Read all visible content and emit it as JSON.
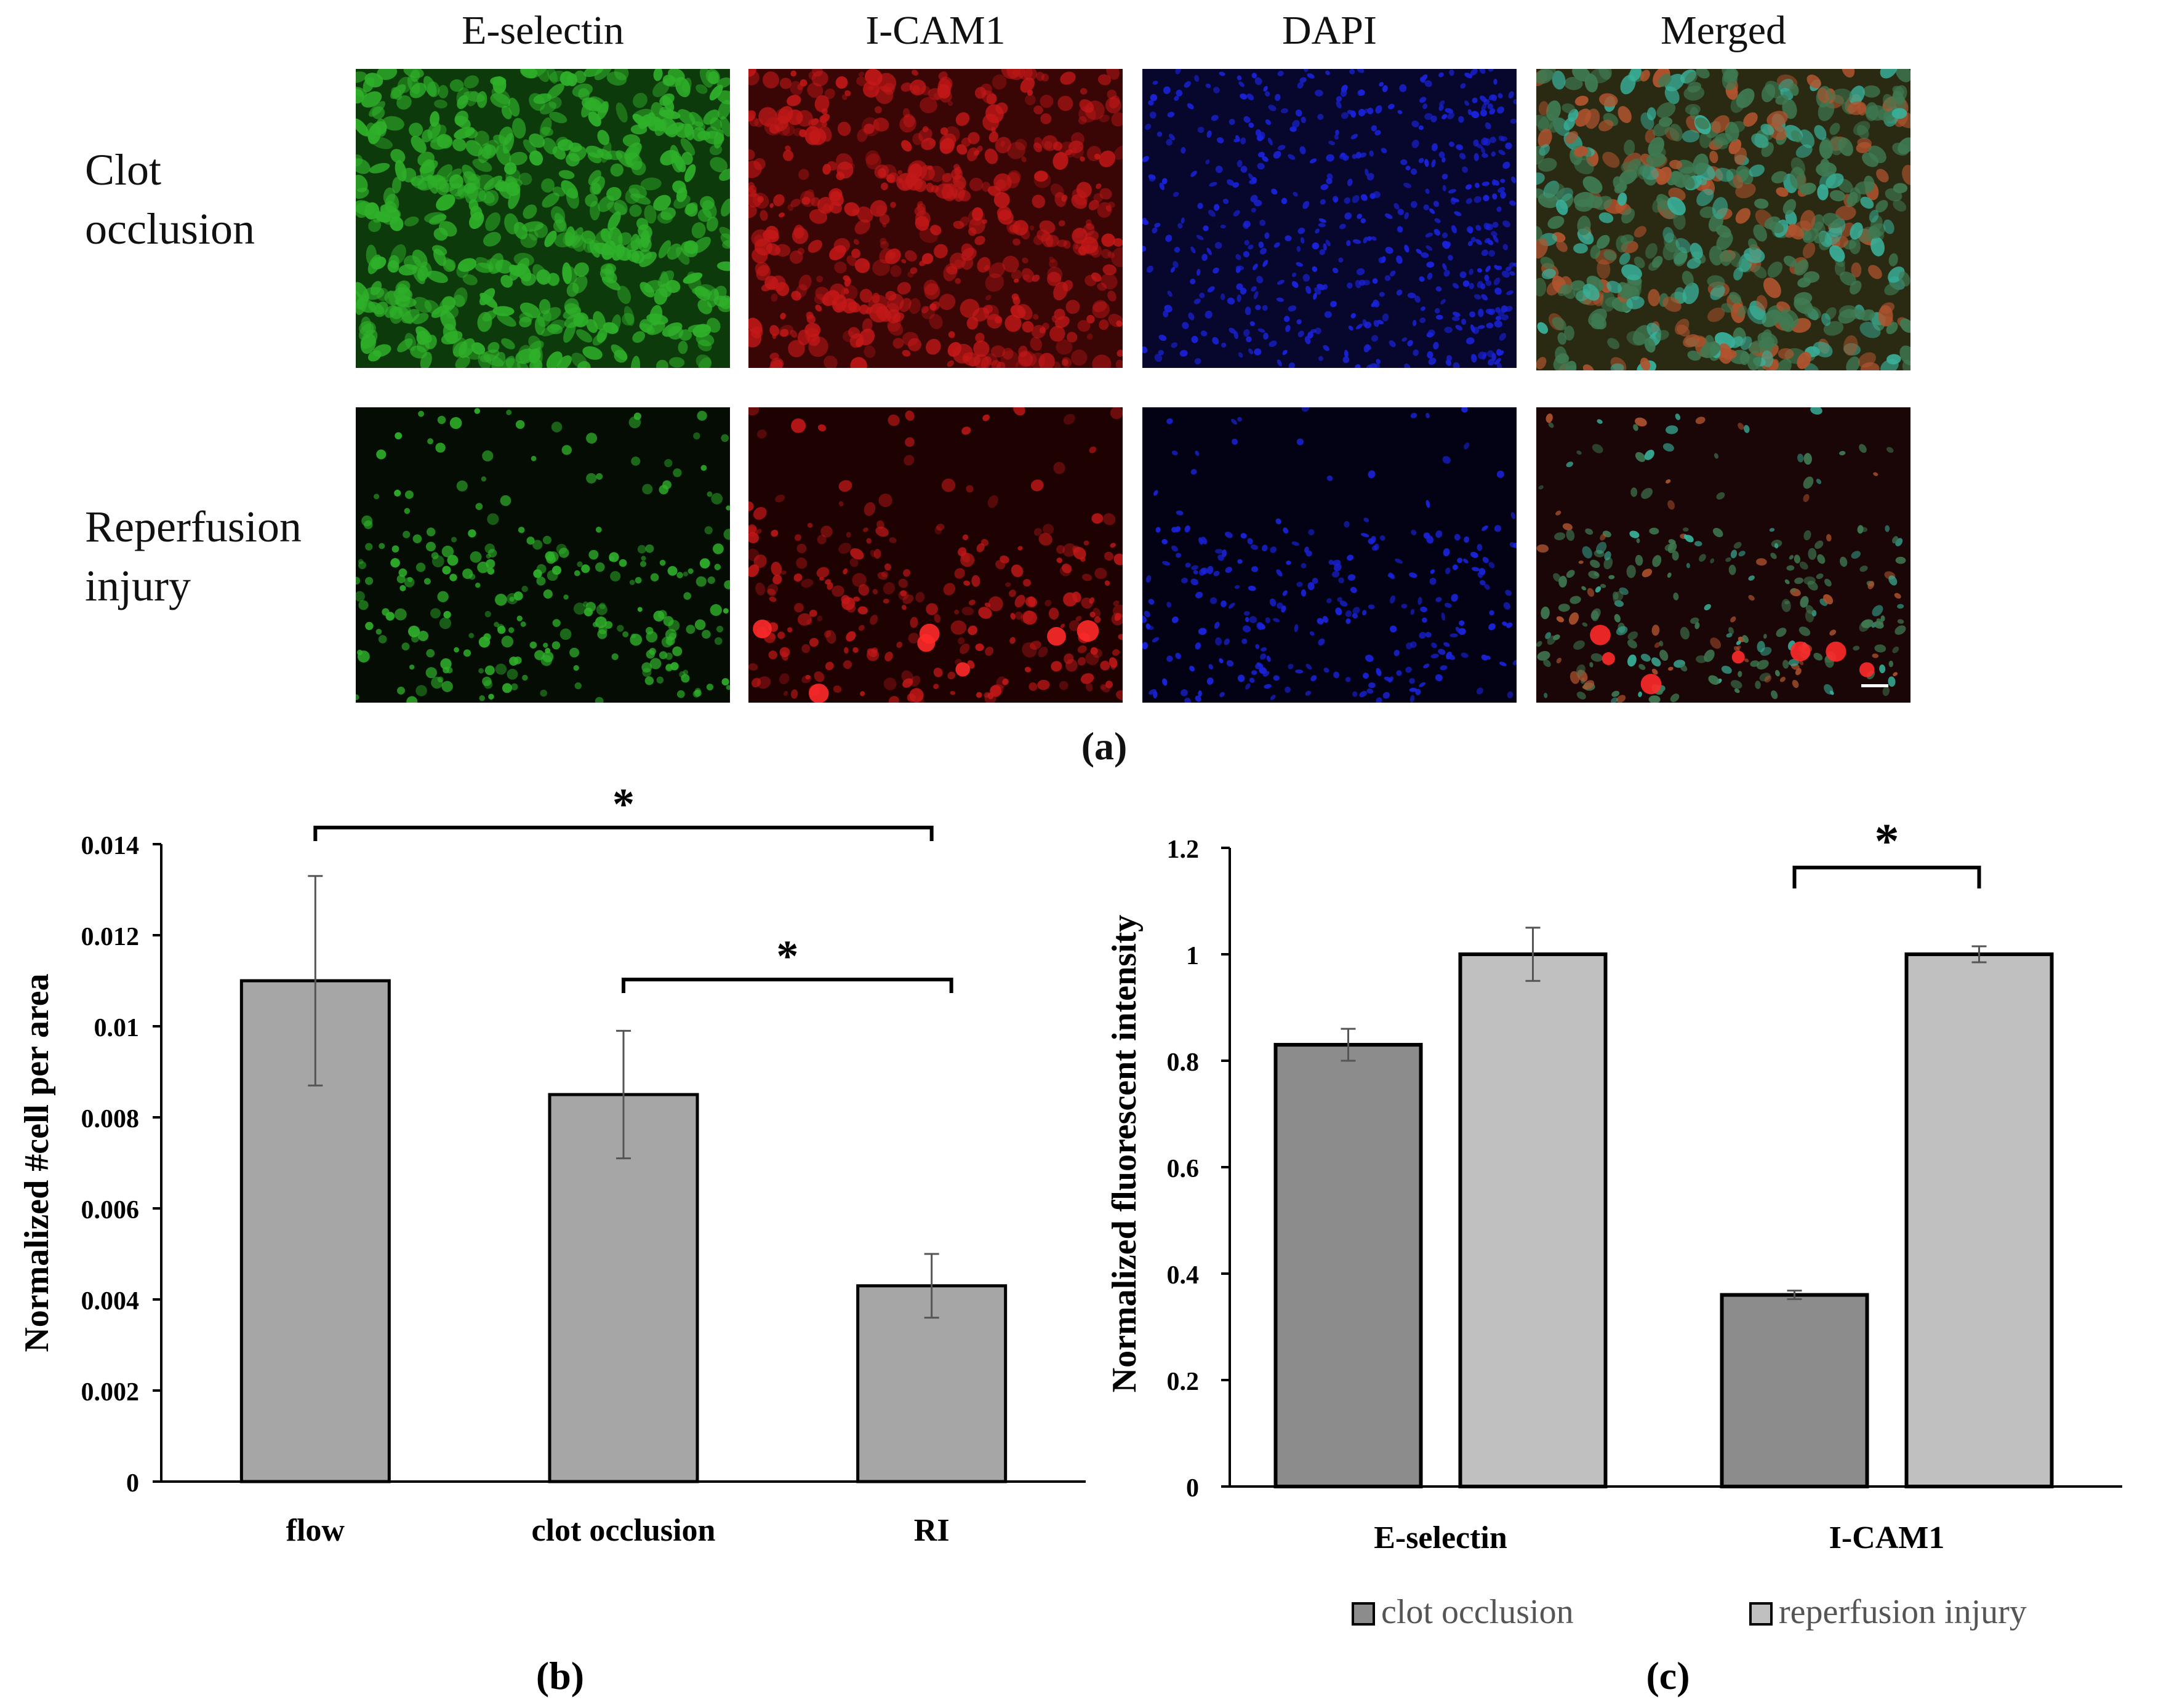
{
  "figure_a": {
    "columns": [
      "E-selectin",
      "I-CAM1",
      "DAPI",
      "Merged"
    ],
    "rows": [
      {
        "line1": "Clot",
        "line2": "occlusion"
      },
      {
        "line1": "Reperfusion",
        "line2": "injury"
      }
    ],
    "channel_colors": {
      "green": "#2fb02a",
      "red": "#c41818",
      "blue": "#1a22d8"
    },
    "caption": "(a)"
  },
  "chart_data": [
    {
      "type": "bar",
      "categories": [
        "flow",
        "clot occlusion",
        "RI"
      ],
      "values": [
        0.011,
        0.0085,
        0.0043
      ],
      "errors": [
        0.0023,
        0.0014,
        0.0007
      ],
      "ylabel": "Normalized #cell per area",
      "ylim": [
        0,
        0.014
      ],
      "yticks": [
        "0",
        "0.002",
        "0.004",
        "0.006",
        "0.008",
        "0.01",
        "0.012",
        "0.014"
      ],
      "bar_color": "#a6a6a6",
      "significance": [
        {
          "from": "flow",
          "to": "RI",
          "label": "*"
        },
        {
          "from": "clot occlusion",
          "to": "RI",
          "label": "*"
        }
      ],
      "caption": "(b)"
    },
    {
      "type": "bar",
      "categories": [
        "E-selectin",
        "I-CAM1"
      ],
      "series": [
        {
          "name": "clot occlusion",
          "values": [
            0.83,
            0.36
          ],
          "errors": [
            0.03,
            0.008
          ],
          "color": "#8c8c8c"
        },
        {
          "name": "reperfusion injury",
          "values": [
            1.0,
            1.0
          ],
          "errors": [
            0.05,
            0.015
          ],
          "color": "#c0c0c0"
        }
      ],
      "ylabel": "Normalized fluorescent intensity",
      "ylim": [
        0,
        1.2
      ],
      "yticks": [
        "0",
        "0.2",
        "0.4",
        "0.6",
        "0.8",
        "1",
        "1.2"
      ],
      "legend": "bottom",
      "significance": [
        {
          "category": "I-CAM1",
          "label": "*"
        }
      ],
      "caption": "(c)"
    }
  ]
}
